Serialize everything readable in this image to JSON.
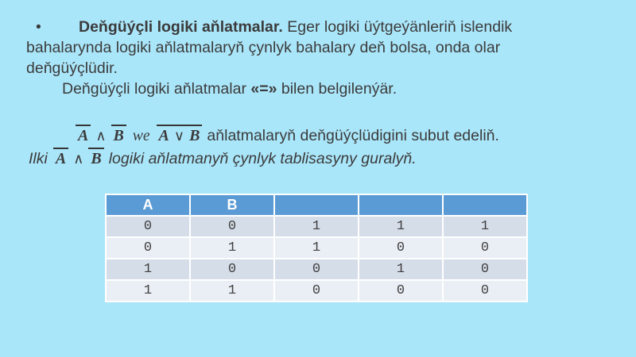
{
  "slide": {
    "background_color": "#AAE6FA",
    "text_color": "#3B3B3B"
  },
  "paragraph": {
    "bullet": "•",
    "line1_bold": "Deňgüýçli logiki aňlatmalar.",
    "line1_rest": " Eger logiki üýtgeýänleriň islendik",
    "line2": "bahalarynda logiki aňlatmalaryň çynlyk bahalary deň bolsa, onda olar",
    "line3": "deňgüýçlüdir.",
    "line4_pre": "Deňgüýçli logiki aňlatmalar ",
    "line4_eq": "«=»",
    "line4_post": " bilen belgilenýär."
  },
  "formula_line": {
    "a1": "A",
    "op_and": "∧",
    "b1": "B",
    "we": "we",
    "a2": "A",
    "op_or": "∨",
    "b2": "B",
    "rest": "aňlatmalaryň deňgüýçlüdigini subut edeliň."
  },
  "task_line": {
    "pre": "Ilki",
    "a": "A",
    "op_and": "∧",
    "b": "B",
    "rest": "logiki aňlatmanyň çynlyk tablisasyny guralyň."
  },
  "truth_table": {
    "headers": [
      "A",
      "B",
      "",
      "",
      ""
    ],
    "rows": [
      [
        "0",
        "0",
        "1",
        "1",
        "1"
      ],
      [
        "0",
        "1",
        "1",
        "0",
        "0"
      ],
      [
        "1",
        "0",
        "0",
        "1",
        "0"
      ],
      [
        "1",
        "1",
        "0",
        "0",
        "0"
      ]
    ],
    "colors": {
      "header_fill": "#5B9BD5",
      "header_text": "#FFFFFF",
      "row_band_dark": "#D5DDE9",
      "row_band_light": "#EAEEF5",
      "grid": "#FFFFFF"
    }
  }
}
